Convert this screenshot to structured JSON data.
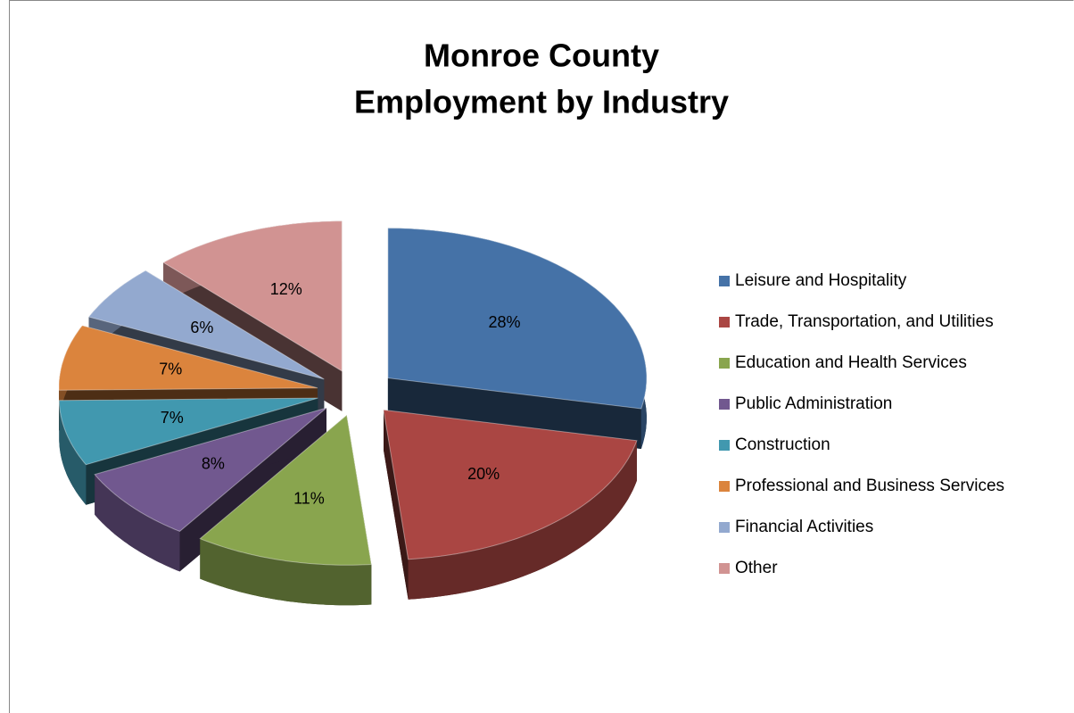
{
  "chart_data": {
    "type": "pie",
    "title": [
      "Monroe County",
      "Employment by Industry"
    ],
    "categories": [
      "Leisure and Hospitality",
      "Trade, Transportation, and Utilities",
      "Education and Health Services",
      "Public Administration",
      "Construction",
      "Professional and Business Services",
      "Financial Activities",
      "Other"
    ],
    "values": [
      28,
      20,
      11,
      8,
      7,
      7,
      6,
      12
    ],
    "value_labels": [
      "28%",
      "20%",
      "11%",
      "8%",
      "7%",
      "7%",
      "6%",
      "12%"
    ],
    "colors": [
      "#4572a7",
      "#aa4643",
      "#89a54e",
      "#71588f",
      "#4198af",
      "#db843d",
      "#93a9cf",
      "#d19392"
    ],
    "legend": "right"
  }
}
